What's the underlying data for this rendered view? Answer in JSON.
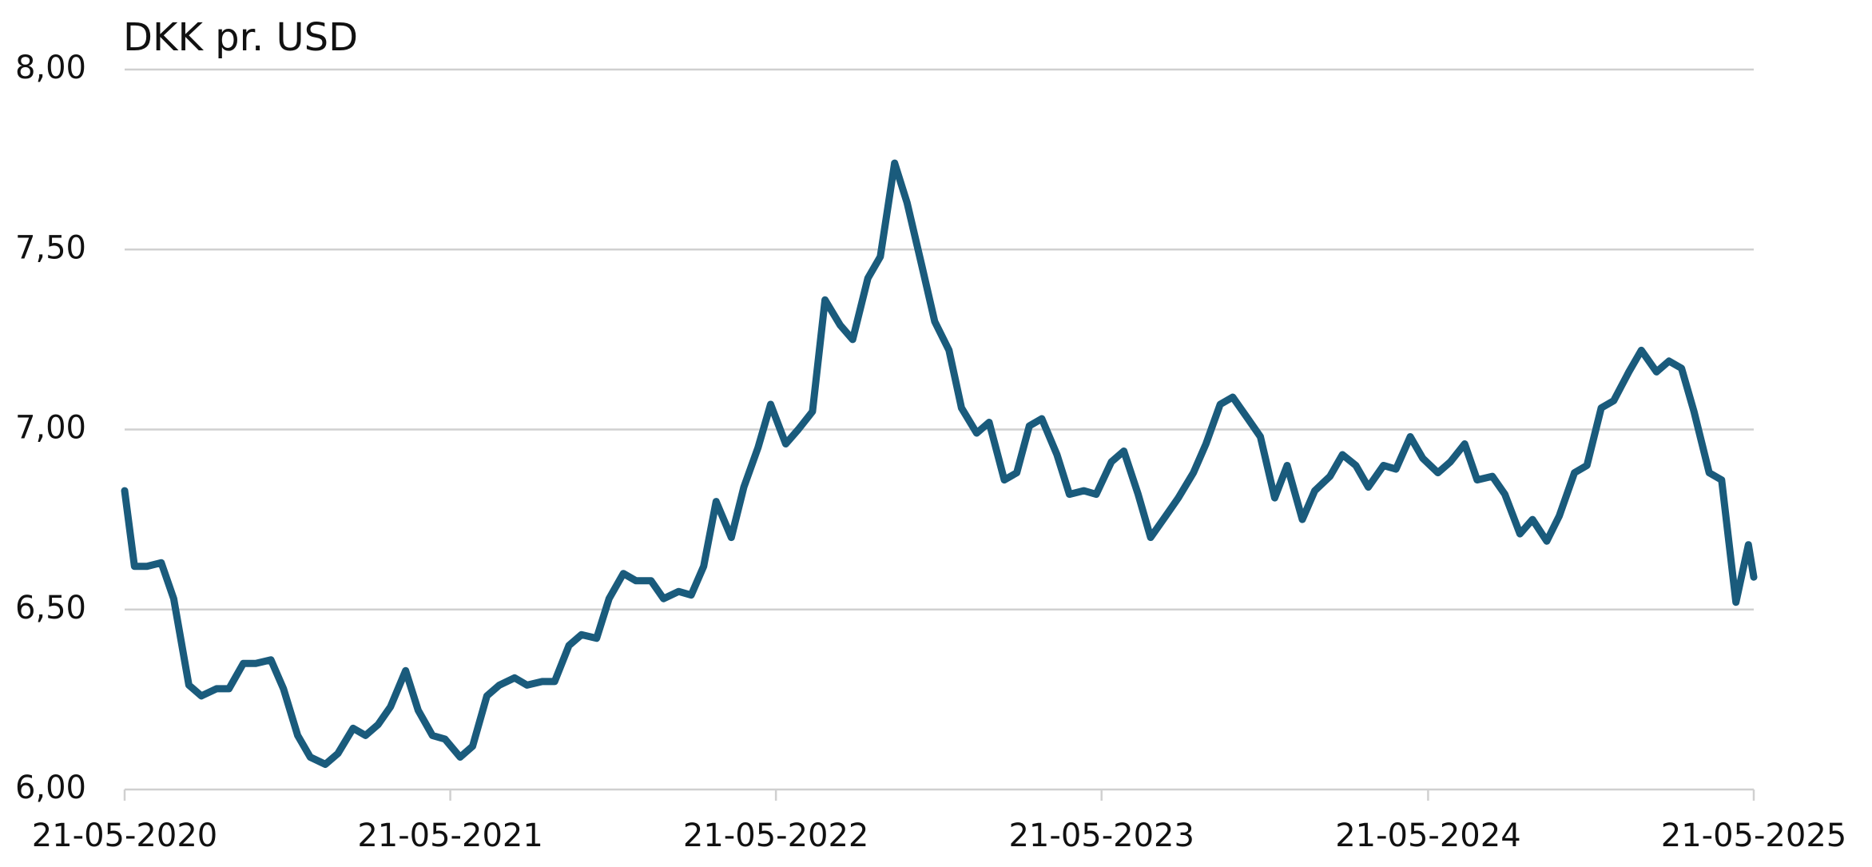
{
  "chart_data": {
    "type": "line",
    "title": "DKK pr. USD",
    "x": [
      "21-05-2020",
      "01-06-2020",
      "15-06-2020",
      "01-07-2020",
      "15-07-2020",
      "01-08-2020",
      "15-08-2020",
      "01-09-2020",
      "15-09-2020",
      "01-10-2020",
      "15-10-2020",
      "01-11-2020",
      "15-11-2020",
      "01-12-2020",
      "15-12-2020",
      "01-01-2021",
      "15-01-2021",
      "01-02-2021",
      "15-02-2021",
      "01-03-2021",
      "15-03-2021",
      "01-04-2021",
      "15-04-2021",
      "01-05-2021",
      "15-05-2021",
      "01-06-2021",
      "15-06-2021",
      "01-07-2021",
      "15-07-2021",
      "01-08-2021",
      "15-08-2021",
      "01-09-2021",
      "15-09-2021",
      "01-10-2021",
      "15-10-2021",
      "01-11-2021",
      "15-11-2021",
      "01-12-2021",
      "15-12-2021",
      "01-01-2022",
      "15-01-2022",
      "01-02-2022",
      "15-02-2022",
      "01-03-2022",
      "15-03-2022",
      "01-04-2022",
      "15-04-2022",
      "01-05-2022",
      "15-05-2022",
      "01-06-2022",
      "15-06-2022",
      "01-07-2022",
      "15-07-2022",
      "01-08-2022",
      "15-08-2022",
      "01-09-2022",
      "15-09-2022",
      "01-10-2022",
      "15-10-2022",
      "01-11-2022",
      "15-11-2022",
      "01-12-2022",
      "15-12-2022",
      "01-01-2023",
      "15-01-2023",
      "01-02-2023",
      "15-02-2023",
      "01-03-2023",
      "15-03-2023",
      "01-04-2023",
      "15-04-2023",
      "01-05-2023",
      "15-05-2023",
      "01-06-2023",
      "15-06-2023",
      "01-07-2023",
      "15-07-2023",
      "01-08-2023",
      "15-08-2023",
      "01-09-2023",
      "15-09-2023",
      "01-10-2023",
      "15-10-2023",
      "01-11-2023",
      "15-11-2023",
      "01-12-2023",
      "15-12-2023",
      "01-01-2024",
      "15-01-2024",
      "01-02-2024",
      "15-02-2024",
      "01-03-2024",
      "15-03-2024",
      "01-04-2024",
      "15-04-2024",
      "01-05-2024",
      "15-05-2024",
      "01-06-2024",
      "15-06-2024",
      "01-07-2024",
      "15-07-2024",
      "01-08-2024",
      "15-08-2024",
      "01-09-2024",
      "15-09-2024",
      "01-10-2024",
      "15-10-2024",
      "01-11-2024",
      "15-11-2024",
      "01-12-2024",
      "15-12-2024",
      "01-01-2025",
      "15-01-2025",
      "01-02-2025",
      "15-02-2025",
      "01-03-2025",
      "15-03-2025",
      "01-04-2025",
      "15-04-2025",
      "01-05-2025",
      "15-05-2025",
      "21-05-2025"
    ],
    "series": [
      {
        "name": "DKK pr. USD",
        "color": "#1a5b7c",
        "values": [
          6.83,
          6.62,
          6.62,
          6.63,
          6.53,
          6.29,
          6.26,
          6.28,
          6.28,
          6.35,
          6.35,
          6.36,
          6.28,
          6.15,
          6.09,
          6.07,
          6.1,
          6.17,
          6.15,
          6.18,
          6.23,
          6.33,
          6.22,
          6.15,
          6.14,
          6.09,
          6.12,
          6.26,
          6.29,
          6.31,
          6.29,
          6.3,
          6.3,
          6.4,
          6.43,
          6.42,
          6.53,
          6.6,
          6.58,
          6.58,
          6.53,
          6.55,
          6.54,
          6.62,
          6.8,
          6.7,
          6.84,
          6.95,
          7.07,
          6.96,
          7.0,
          7.05,
          7.36,
          7.29,
          7.25,
          7.42,
          7.48,
          7.74,
          7.63,
          7.45,
          7.3,
          7.22,
          7.06,
          6.99,
          7.02,
          6.86,
          6.88,
          7.01,
          7.03,
          6.93,
          6.82,
          6.83,
          6.82,
          6.91,
          6.94,
          6.82,
          6.7,
          6.76,
          6.81,
          6.88,
          6.96,
          7.07,
          7.09,
          7.03,
          6.98,
          6.81,
          6.9,
          6.75,
          6.83,
          6.87,
          6.93,
          6.9,
          6.84,
          6.9,
          6.89,
          6.98,
          6.92,
          6.88,
          6.91,
          6.96,
          6.86,
          6.87,
          6.82,
          6.71,
          6.75,
          6.69,
          6.76,
          6.88,
          6.9,
          7.06,
          7.08,
          7.16,
          7.22,
          7.16,
          7.19,
          7.17,
          7.05,
          6.88,
          6.86,
          6.52,
          6.68,
          6.59
        ]
      }
    ],
    "xlim": [
      "21-05-2020",
      "21-05-2025"
    ],
    "xticks": [
      "21-05-2020",
      "21-05-2021",
      "21-05-2022",
      "21-05-2023",
      "21-05-2024",
      "21-05-2025"
    ],
    "ylim": [
      6,
      8
    ],
    "yticks": [
      {
        "value": 6,
        "label": "6,00"
      },
      {
        "value": 6.5,
        "label": "6,50"
      },
      {
        "value": 7,
        "label": "7,00"
      },
      {
        "value": 7.5,
        "label": "7,50"
      },
      {
        "value": 8,
        "label": "8,00"
      }
    ],
    "grid": true
  }
}
